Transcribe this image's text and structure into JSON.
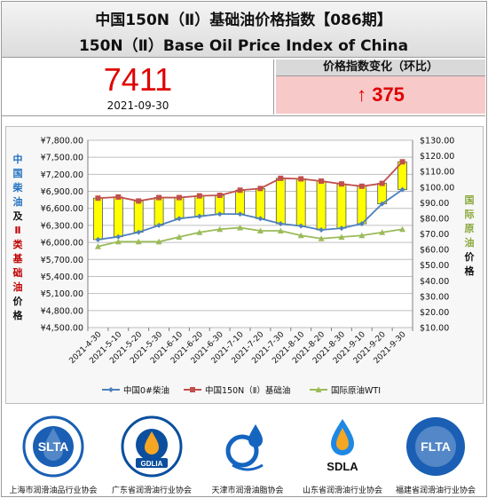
{
  "header": {
    "title_cn": "中国150N（Ⅱ）基础油价格指数【086期】",
    "title_en": "150N（Ⅱ）Base Oil Price Index of China"
  },
  "index": {
    "value": "7411",
    "date": "2021-09-30"
  },
  "change": {
    "label": "价格指数变化（环比）",
    "arrow": "↑",
    "value": "375"
  },
  "colors": {
    "accent_red": "#e00000",
    "change_bg": "#f7c9c9",
    "bar_fill": "#ffff00",
    "diesel": "#4f81bd",
    "base_oil": "#c0504d",
    "wti": "#9bbb59"
  },
  "chart_data": {
    "type": "line",
    "categories": [
      "2021-4-30",
      "2021-5-10",
      "2021-5-20",
      "2021-5-30",
      "2021-6-10",
      "2021-6-20",
      "2021-6-30",
      "2021-7-10",
      "2021-7-20",
      "2021-7-30",
      "2021-8-10",
      "2021-8-20",
      "2021-8-30",
      "2021-9-10",
      "2021-9-20",
      "2021-9-30"
    ],
    "left_axis": {
      "ticks": [
        "¥7,800.00",
        "¥7,500.00",
        "¥7,200.00",
        "¥6,900.00",
        "¥6,600.00",
        "¥6,300.00",
        "¥6,000.00",
        "¥5,700.00",
        "¥5,400.00",
        "¥5,100.00",
        "¥4,800.00",
        "¥4,500.00"
      ],
      "range": [
        4500,
        7800
      ],
      "label_chars": [
        "中",
        "国",
        "柴",
        "油",
        "及",
        "Ⅱ",
        "类",
        "基",
        "础",
        "油",
        "价",
        "格"
      ]
    },
    "right_axis": {
      "ticks": [
        "$130.00",
        "$120.00",
        "$110.00",
        "$100.00",
        "$90.00",
        "$80.00",
        "$70.00",
        "$60.00",
        "$50.00",
        "$40.00",
        "$30.00",
        "$20.00",
        "$10.00"
      ],
      "range": [
        10,
        130
      ],
      "label_chars": [
        "国",
        "际",
        "原",
        "油",
        "价",
        "格"
      ]
    },
    "series": [
      {
        "name": "中国0#柴油",
        "axis": "left",
        "values": [
          6050,
          6100,
          6180,
          6300,
          6420,
          6460,
          6500,
          6500,
          6420,
          6330,
          6290,
          6220,
          6250,
          6330,
          6680,
          6930
        ]
      },
      {
        "name": "中国150N（Ⅱ）基础油",
        "axis": "left",
        "values": [
          6780,
          6800,
          6730,
          6790,
          6790,
          6820,
          6830,
          6920,
          6950,
          7130,
          7120,
          7080,
          7030,
          6990,
          7040,
          7420
        ]
      },
      {
        "name": "国际原油WTI",
        "axis": "right",
        "values": [
          62,
          65,
          65,
          65,
          68,
          71,
          73,
          74,
          72,
          72,
          69,
          67,
          68,
          69,
          71,
          73
        ]
      }
    ],
    "bars_between": [
      "中国0#柴油",
      "中国150N（Ⅱ）基础油"
    ],
    "grid": true,
    "legend": "bottom"
  },
  "logos": [
    {
      "name": "SLTA",
      "caption": "上海市润滑油品行业协会",
      "color": "#1a5fb4",
      "ring": "上海市润滑油品行业协会"
    },
    {
      "name": "GDLIA",
      "caption": "广东省润滑油行业协会",
      "color": "#0b4f9e",
      "ring": "广东省润滑油行业协会"
    },
    {
      "name": "",
      "caption": "天津市润滑油脂协会",
      "color": "#1565c0",
      "ring": ""
    },
    {
      "name": "SDLA",
      "caption": "山东省润滑油行业协会",
      "color": "#111111",
      "ring": ""
    },
    {
      "name": "FLTA",
      "caption": "福建省润滑油行业协会",
      "color": "#1a5fb4",
      "ring": "福建省润滑油行业协会"
    }
  ]
}
